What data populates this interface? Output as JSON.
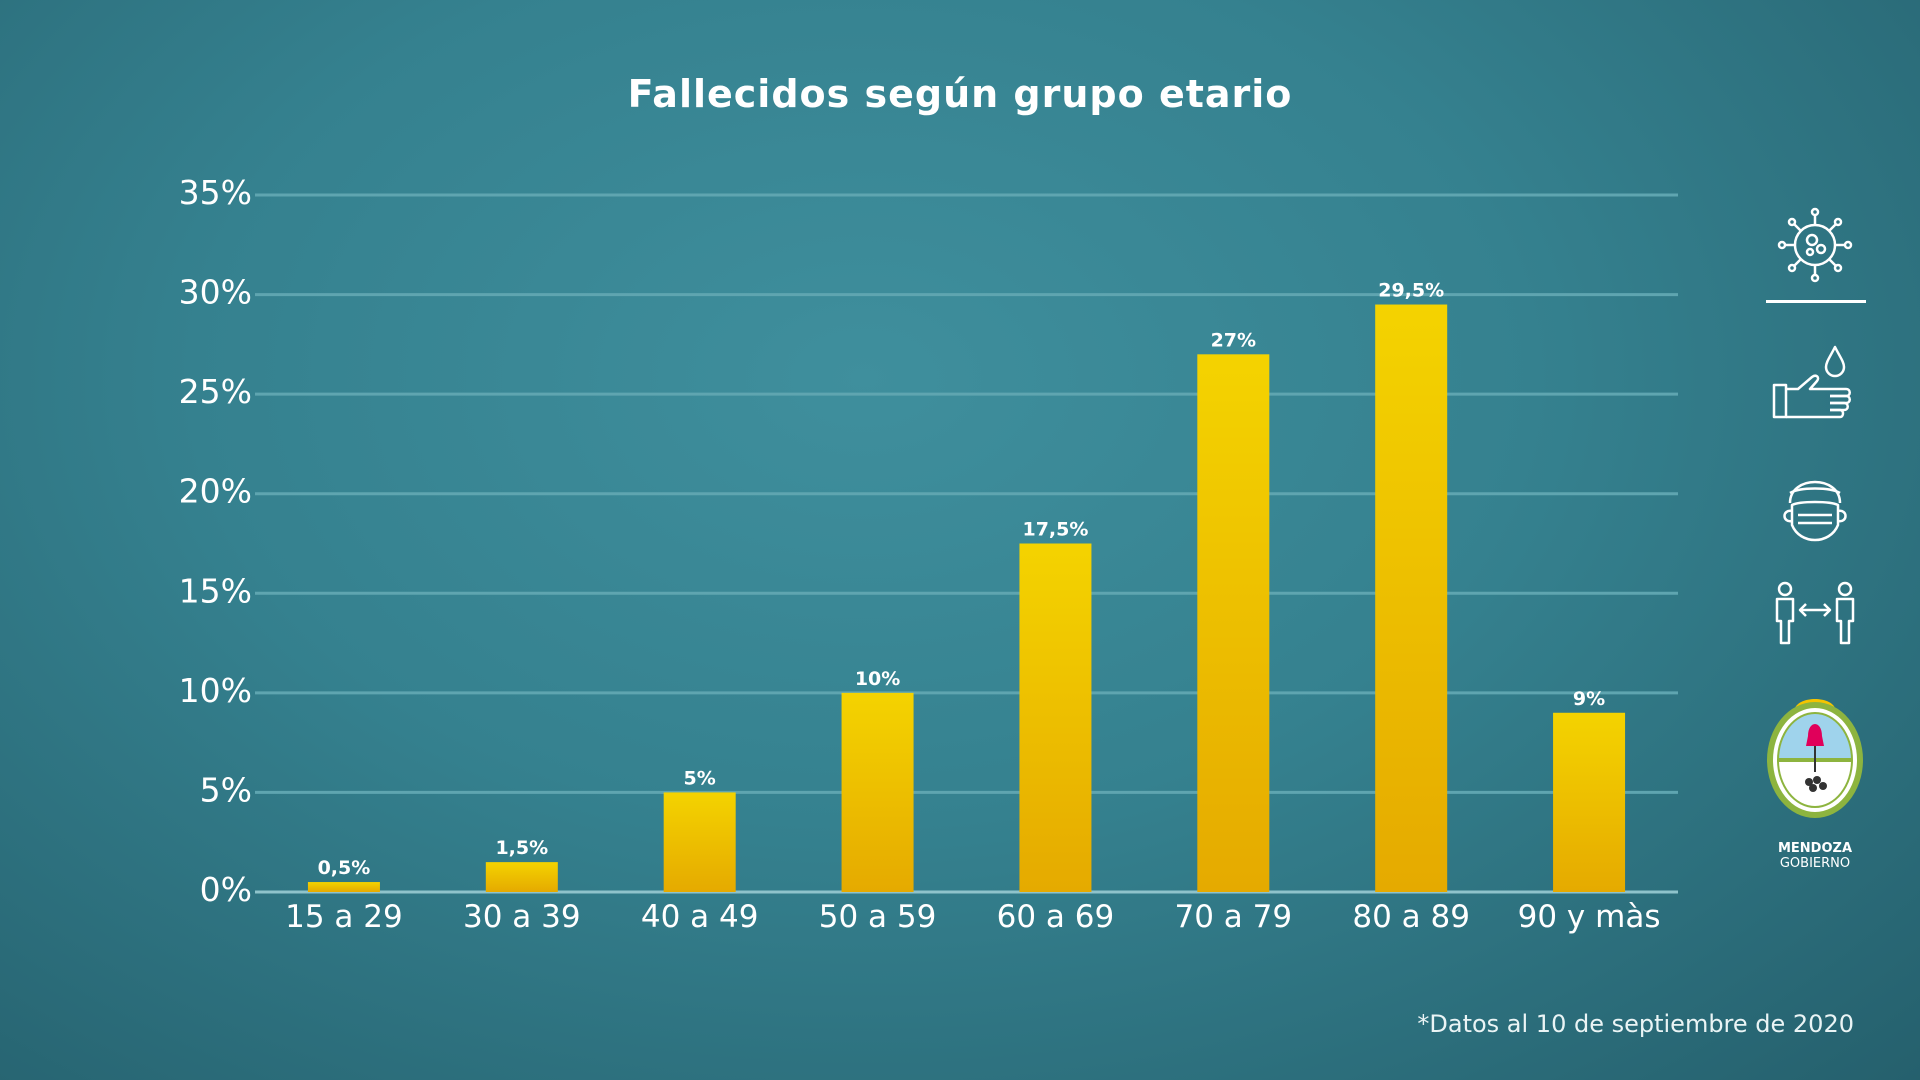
{
  "footnote": "*Datos al 10 de septiembre de 2020",
  "logo": {
    "line1": "MENDOZA",
    "line2": "GOBIERNO"
  },
  "icons": [
    "virus-icon",
    "hand-wash-icon",
    "face-mask-icon",
    "social-distance-icon"
  ],
  "colors": {
    "bar_top": "#f4d300",
    "bar_bottom": "#e5aa00",
    "gridline": "#5fa5b0",
    "text": "#ffffff"
  },
  "chart_data": {
    "type": "bar",
    "title": "Fallecidos según grupo etario",
    "xlabel": "",
    "ylabel": "",
    "categories": [
      "15 a 29",
      "30 a 39",
      "40 a 49",
      "50 a 59",
      "60 a 69",
      "70 a 79",
      "80 a 89",
      "90 y màs"
    ],
    "values": [
      0.5,
      1.5,
      5,
      10,
      17.5,
      27,
      29.5,
      9
    ],
    "data_labels": [
      "0,5%",
      "1,5%",
      "5%",
      "10%",
      "17,5%",
      "27%",
      "29,5%",
      "9%"
    ],
    "y_ticks": [
      "0%",
      "5%",
      "10%",
      "15%",
      "20%",
      "25%",
      "30%",
      "35%"
    ],
    "y_tick_values": [
      0,
      5,
      10,
      15,
      20,
      25,
      30,
      35
    ],
    "ylim": [
      0,
      35
    ],
    "grid": true,
    "legend": "none"
  }
}
